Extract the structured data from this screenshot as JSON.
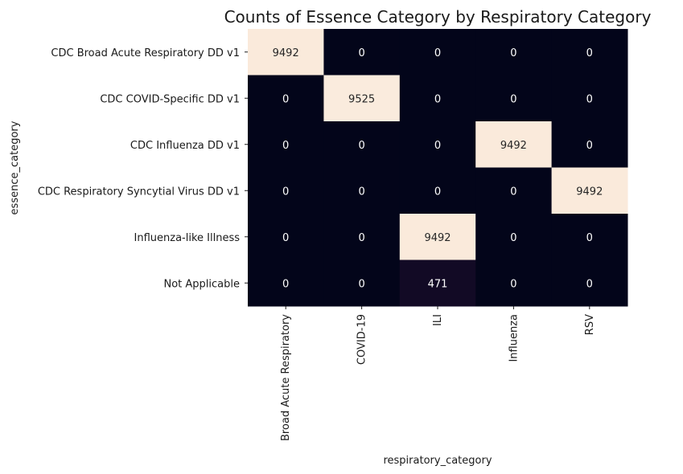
{
  "chart_data": {
    "type": "heatmap",
    "title": "Counts of Essence Category by Respiratory Category",
    "xlabel": "respiratory_category",
    "ylabel": "essence_category",
    "x_categories": [
      "Broad Acute Respiratory",
      "COVID-19",
      "ILI",
      "Influenza",
      "RSV"
    ],
    "y_categories": [
      "CDC Broad Acute Respiratory DD v1",
      "CDC COVID-Specific DD v1",
      "CDC Influenza DD v1",
      "CDC Respiratory Syncytial Virus DD v1",
      "Influenza-like Illness",
      "Not Applicable"
    ],
    "values": [
      [
        9492,
        0,
        0,
        0,
        0
      ],
      [
        0,
        9525,
        0,
        0,
        0
      ],
      [
        0,
        0,
        0,
        9492,
        0
      ],
      [
        0,
        0,
        0,
        0,
        9492
      ],
      [
        0,
        0,
        9492,
        0,
        0
      ],
      [
        0,
        0,
        471,
        0,
        0
      ]
    ],
    "colormap": "rocket",
    "color_low": "#03051a",
    "color_high": "#faebdd",
    "colorbar": false,
    "annotations": true,
    "grid": false
  }
}
